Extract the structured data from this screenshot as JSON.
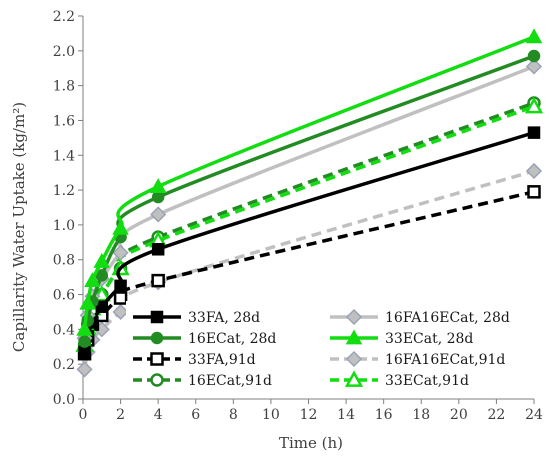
{
  "chart_data": {
    "type": "line",
    "title": "",
    "xlabel": "Time (h)",
    "ylabel": "Capillarity Water Uptake (kg/m²)",
    "xlim": [
      0,
      24
    ],
    "ylim": [
      0,
      2.2
    ],
    "xticks": [
      "0",
      "2",
      "4",
      "6",
      "8",
      "10",
      "12",
      "14",
      "16",
      "18",
      "20",
      "22",
      "24"
    ],
    "yticks": [
      "0.0",
      "0.2",
      "0.4",
      "0.6",
      "0.8",
      "1.0",
      "1.2",
      "1.4",
      "1.6",
      "1.8",
      "2.0",
      "2.2"
    ],
    "x": [
      0.083,
      0.25,
      0.5,
      1,
      2,
      4,
      24
    ],
    "grid": false,
    "legend_position": "inside-bottom",
    "series": [
      {
        "name": "33FA, 28d",
        "color": "#000000",
        "dash": "solid",
        "marker": "square",
        "values": [
          0.27,
          0.36,
          0.44,
          0.53,
          0.65,
          0.86,
          1.53
        ]
      },
      {
        "name": "16FA16ECat, 28d",
        "color": "#c0c0c0",
        "dash": "solid",
        "marker": "diamond",
        "values": [
          0.35,
          0.48,
          0.59,
          0.69,
          0.84,
          1.06,
          1.91
        ]
      },
      {
        "name": "16ECat, 28d",
        "color": "#228b22",
        "dash": "solid",
        "marker": "circle",
        "values": [
          0.33,
          0.45,
          0.56,
          0.71,
          0.93,
          1.16,
          1.97
        ]
      },
      {
        "name": "33ECat, 28d",
        "color": "#11dd11",
        "dash": "solid",
        "marker": "triangle",
        "values": [
          0.4,
          0.55,
          0.68,
          0.79,
          0.98,
          1.22,
          2.08
        ]
      },
      {
        "name": "33FA,91d",
        "color": "#000000",
        "dash": "dashed",
        "marker": "square-open",
        "values": [
          0.26,
          0.34,
          0.43,
          0.48,
          0.58,
          0.68,
          1.19
        ]
      },
      {
        "name": "16FA16ECat,91d",
        "color": "#c0c0c0",
        "dash": "dashed",
        "marker": "diamond",
        "values": [
          0.17,
          0.27,
          0.34,
          0.4,
          0.5,
          0.67,
          1.31
        ]
      },
      {
        "name": "16ECat,91d",
        "color": "#228b22",
        "dash": "dashed",
        "marker": "circle-open",
        "values": [
          0.31,
          0.43,
          0.52,
          0.6,
          0.75,
          0.93,
          1.7
        ]
      },
      {
        "name": "33ECat,91d",
        "color": "#11dd11",
        "dash": "dashed",
        "marker": "triangle-open",
        "values": [
          0.31,
          0.41,
          0.52,
          0.6,
          0.75,
          0.91,
          1.68
        ]
      }
    ]
  }
}
